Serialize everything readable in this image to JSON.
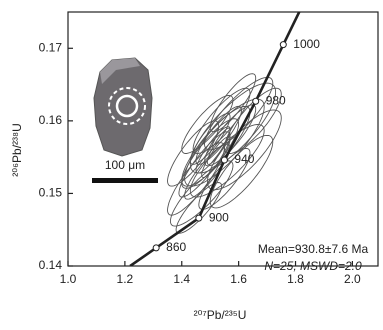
{
  "chart_data": {
    "type": "concordia",
    "xlabel": "²⁰⁷Pb/²³⁵U",
    "ylabel": "²⁰⁶Pb/²³⁸U",
    "xlim": [
      1.0,
      2.09
    ],
    "ylim": [
      0.14,
      0.175
    ],
    "xticks": [
      {
        "value": 1,
        "label": "1.0"
      },
      1.2,
      1.4,
      1.6,
      1.8,
      {
        "value": 2,
        "label": "2.0"
      }
    ],
    "yticks": [
      0.14,
      0.15,
      0.16,
      0.17
    ],
    "concordia": {
      "ages": [
        860,
        900,
        940,
        980,
        1000
      ],
      "x": [
        1.31,
        1.46,
        1.55,
        1.66,
        1.757
      ],
      "y": [
        0.1425,
        0.1466,
        0.1546,
        0.1627,
        0.1705
      ]
    },
    "ellipses": [
      {
        "x": 1.52,
        "y": 0.1565,
        "sx": 0.12,
        "sy": 0.0055,
        "rho": 0.85
      },
      {
        "x": 1.5,
        "y": 0.1555,
        "sx": 0.1,
        "sy": 0.0048,
        "rho": 0.85
      },
      {
        "x": 1.55,
        "y": 0.157,
        "sx": 0.14,
        "sy": 0.006,
        "rho": 0.82
      },
      {
        "x": 1.48,
        "y": 0.154,
        "sx": 0.09,
        "sy": 0.0045,
        "rho": 0.88
      },
      {
        "x": 1.58,
        "y": 0.159,
        "sx": 0.15,
        "sy": 0.0062,
        "rho": 0.8
      },
      {
        "x": 1.45,
        "y": 0.152,
        "sx": 0.1,
        "sy": 0.005,
        "rho": 0.86
      },
      {
        "x": 1.6,
        "y": 0.161,
        "sx": 0.12,
        "sy": 0.005,
        "rho": 0.84
      },
      {
        "x": 1.53,
        "y": 0.158,
        "sx": 0.08,
        "sy": 0.004,
        "rho": 0.87
      },
      {
        "x": 1.51,
        "y": 0.156,
        "sx": 0.06,
        "sy": 0.0032,
        "rho": 0.88
      },
      {
        "x": 1.47,
        "y": 0.15,
        "sx": 0.11,
        "sy": 0.0045,
        "rho": 0.85
      },
      {
        "x": 1.56,
        "y": 0.1545,
        "sx": 0.13,
        "sy": 0.005,
        "rho": 0.83
      },
      {
        "x": 1.62,
        "y": 0.156,
        "sx": 0.13,
        "sy": 0.0055,
        "rho": 0.8
      },
      {
        "x": 1.5,
        "y": 0.1575,
        "sx": 0.07,
        "sy": 0.0035,
        "rho": 0.86
      },
      {
        "x": 1.54,
        "y": 0.16,
        "sx": 0.1,
        "sy": 0.0045,
        "rho": 0.85
      },
      {
        "x": 1.49,
        "y": 0.153,
        "sx": 0.08,
        "sy": 0.0038,
        "rho": 0.87
      },
      {
        "x": 1.57,
        "y": 0.158,
        "sx": 0.09,
        "sy": 0.0042,
        "rho": 0.86
      },
      {
        "x": 1.52,
        "y": 0.155,
        "sx": 0.05,
        "sy": 0.0028,
        "rho": 0.88
      },
      {
        "x": 1.44,
        "y": 0.1555,
        "sx": 0.09,
        "sy": 0.0045,
        "rho": 0.84
      },
      {
        "x": 1.65,
        "y": 0.16,
        "sx": 0.1,
        "sy": 0.0045,
        "rho": 0.82
      },
      {
        "x": 1.55,
        "y": 0.152,
        "sx": 0.09,
        "sy": 0.0042,
        "rho": 0.85
      },
      {
        "x": 1.46,
        "y": 0.148,
        "sx": 0.08,
        "sy": 0.0035,
        "rho": 0.86
      },
      {
        "x": 1.58,
        "y": 0.1625,
        "sx": 0.08,
        "sy": 0.004,
        "rho": 0.85
      },
      {
        "x": 1.53,
        "y": 0.1565,
        "sx": 0.04,
        "sy": 0.0025,
        "rho": 0.88
      },
      {
        "x": 1.61,
        "y": 0.153,
        "sx": 0.11,
        "sy": 0.005,
        "rho": 0.82
      },
      {
        "x": 1.49,
        "y": 0.1595,
        "sx": 0.09,
        "sy": 0.004,
        "rho": 0.84
      }
    ],
    "mean_label": "Mean=930.8±7.6 Ma",
    "stats_label": "N=25, MSWD=2.0",
    "scale_label": "100 μm"
  }
}
